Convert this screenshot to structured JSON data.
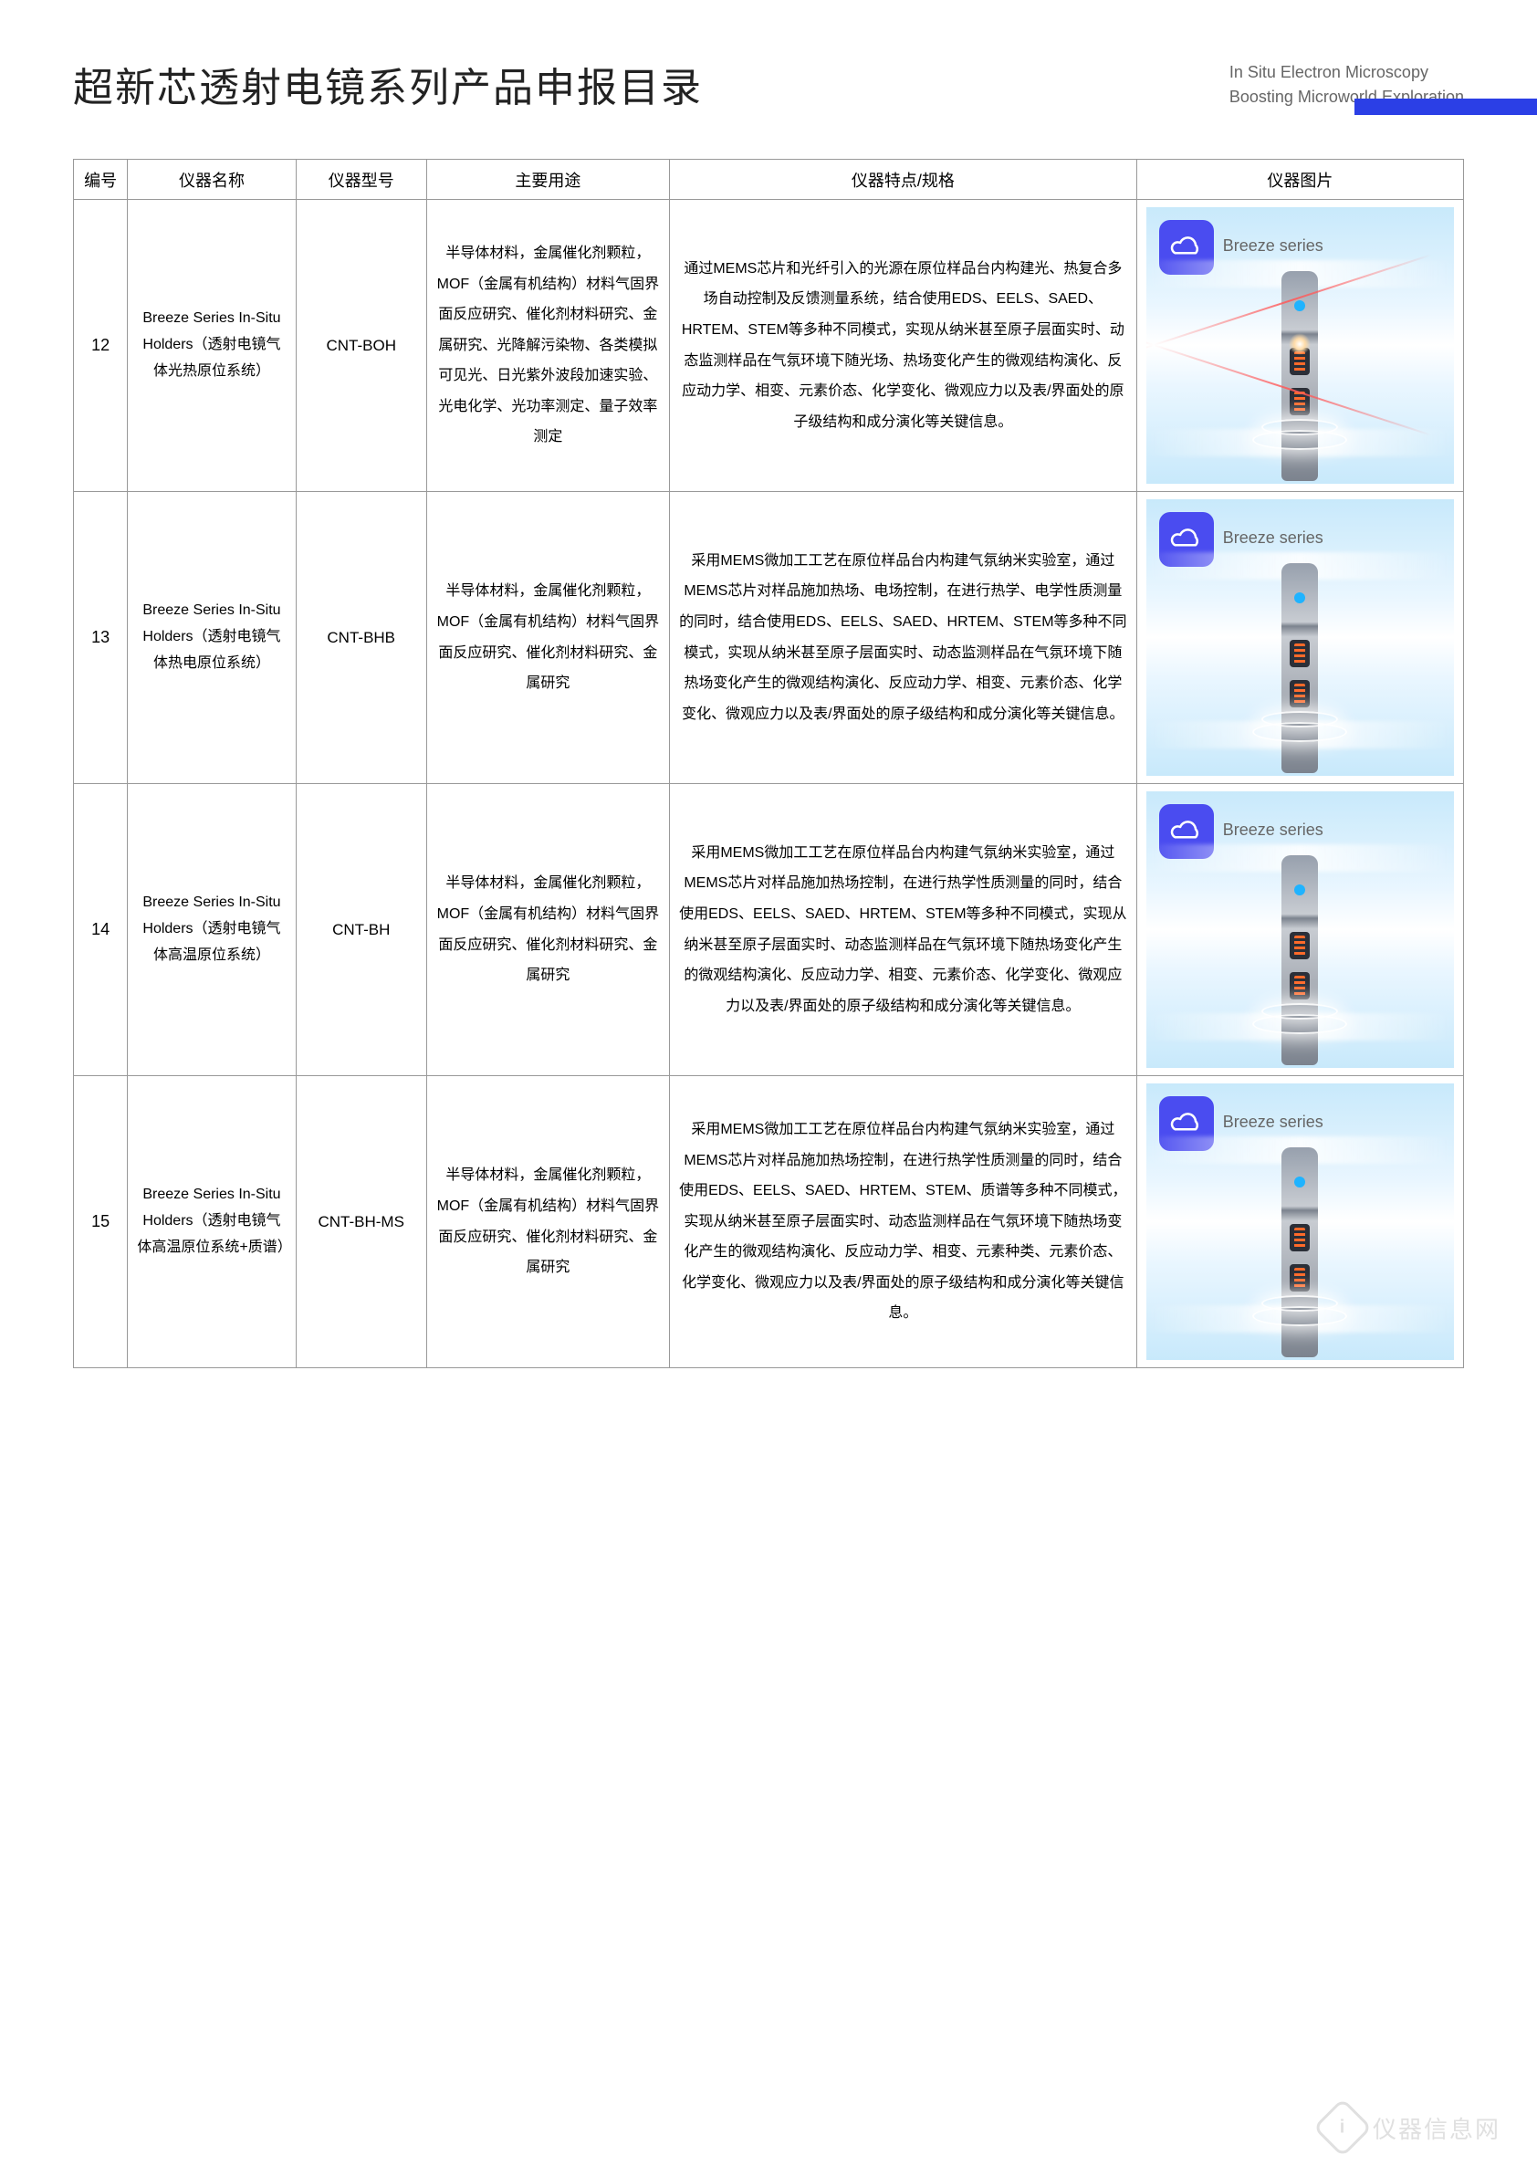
{
  "header": {
    "title_cn": "超新芯透射电镜系列产品申报目录",
    "subtitle_en_1": "In Situ Electron Microscopy",
    "subtitle_en_2": "Boosting Microworld Exploration"
  },
  "columns": {
    "num": "编号",
    "name": "仪器名称",
    "model": "仪器型号",
    "use": "主要用途",
    "spec": "仪器特点/规格",
    "img": "仪器图片"
  },
  "img_common": {
    "series_label": "Breeze series",
    "badge_color": "#4a4cf0",
    "bg_top": "#c8e9fb",
    "bg_mid": "#ffffff"
  },
  "rows": [
    {
      "num": "12",
      "name": "Breeze Series In-Situ Holders（透射电镜气体光热原位系统）",
      "model": "CNT-BOH",
      "use": "半导体材料，金属催化剂颗粒，MOF（金属有机结构）材料气固界面反应研究、催化剂材料研究、金属研究、光降解污染物、各类模拟可见光、日光紫外波段加速实验、光电化学、光功率测定、量子效率测定",
      "spec": "通过MEMS芯片和光纤引入的光源在原位样品台内构建光、热复合多场自动控制及反馈测量系统，结合使用EDS、EELS、SAED、HRTEM、STEM等多种不同模式，实现从纳米甚至原子层面实时、动态监测样品在气氛环境下随光场、热场变化产生的微观结构演化、反应动力学、相变、元素价态、化学变化、微观应力以及表/界面处的原子级结构和成分演化等关键信息。",
      "variant": "v1"
    },
    {
      "num": "13",
      "name": "Breeze Series In-Situ Holders（透射电镜气体热电原位系统）",
      "model": "CNT-BHB",
      "use": "半导体材料，金属催化剂颗粒，MOF（金属有机结构）材料气固界面反应研究、催化剂材料研究、金属研究",
      "spec": "采用MEMS微加工工艺在原位样品台内构建气氛纳米实验室，通过MEMS芯片对样品施加热场、电场控制，在进行热学、电学性质测量的同时，结合使用EDS、EELS、SAED、HRTEM、STEM等多种不同模式，实现从纳米甚至原子层面实时、动态监测样品在气氛环境下随热场变化产生的微观结构演化、反应动力学、相变、元素价态、化学变化、微观应力以及表/界面处的原子级结构和成分演化等关键信息。",
      "variant": "v2"
    },
    {
      "num": "14",
      "name": "Breeze Series In-Situ Holders（透射电镜气体高温原位系统）",
      "model": "CNT-BH",
      "use": "半导体材料，金属催化剂颗粒，MOF（金属有机结构）材料气固界面反应研究、催化剂材料研究、金属研究",
      "spec": "采用MEMS微加工工艺在原位样品台内构建气氛纳米实验室，通过MEMS芯片对样品施加热场控制，在进行热学性质测量的同时，结合使用EDS、EELS、SAED、HRTEM、STEM等多种不同模式，实现从纳米甚至原子层面实时、动态监测样品在气氛环境下随热场变化产生的微观结构演化、反应动力学、相变、元素价态、化学变化、微观应力以及表/界面处的原子级结构和成分演化等关键信息。",
      "variant": "v2"
    },
    {
      "num": "15",
      "name": "Breeze Series In-Situ Holders（透射电镜气体高温原位系统+质谱）",
      "model": "CNT-BH-MS",
      "use": "半导体材料，金属催化剂颗粒，MOF（金属有机结构）材料气固界面反应研究、催化剂材料研究、金属研究",
      "spec": "采用MEMS微加工工艺在原位样品台内构建气氛纳米实验室，通过MEMS芯片对样品施加热场控制，在进行热学性质测量的同时，结合使用EDS、EELS、SAED、HRTEM、STEM、质谱等多种不同模式，实现从纳米甚至原子层面实时、动态监测样品在气氛环境下随热场变化产生的微观结构演化、反应动力学、相变、元素种类、元素价态、化学变化、微观应力以及表/界面处的原子级结构和成分演化等关键信息。",
      "variant": "v2"
    }
  ],
  "watermark": {
    "icon_text": "i",
    "text": "仪器信息网"
  }
}
